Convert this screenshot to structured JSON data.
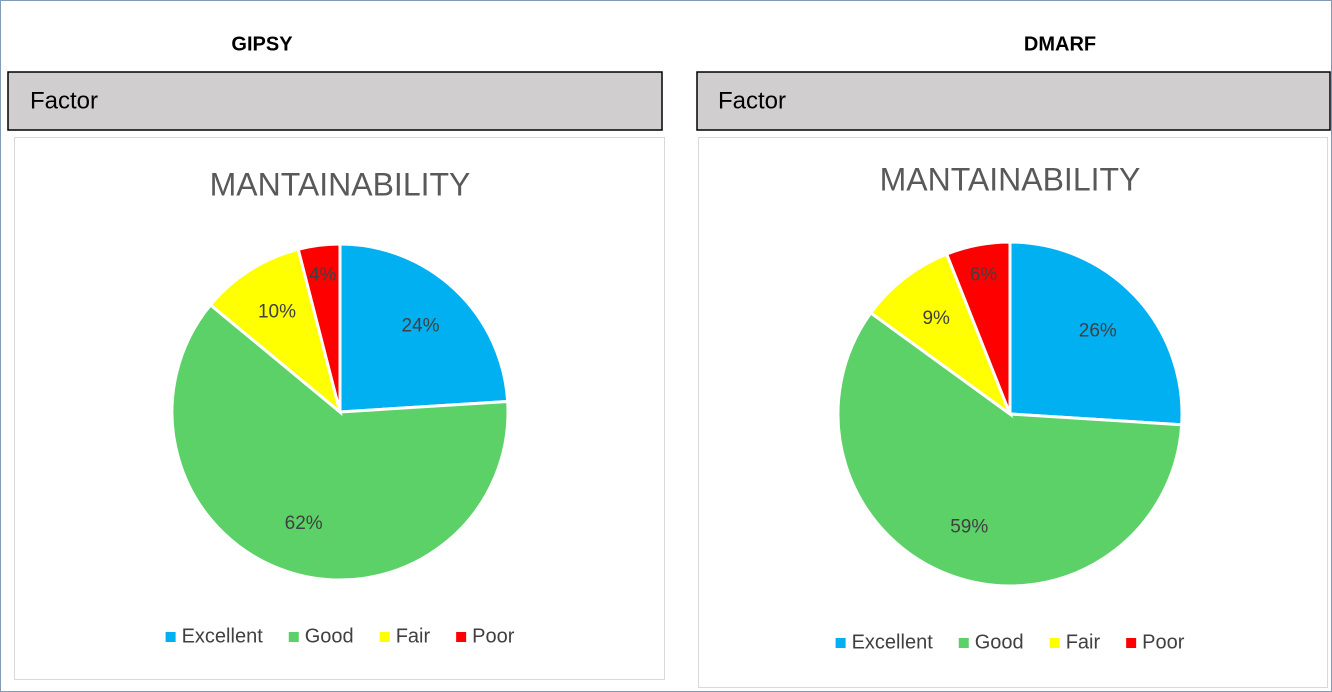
{
  "panels": [
    {
      "heading": "GIPSY",
      "label": "Factor"
    },
    {
      "heading": "DMARF",
      "label": "Factor"
    }
  ],
  "chart_data": [
    {
      "type": "pie",
      "title": "MANTAINABILITY",
      "categories": [
        "Excellent",
        "Good",
        "Fair",
        "Poor"
      ],
      "values": [
        24,
        62,
        10,
        4
      ],
      "value_labels": [
        "24%",
        "62%",
        "10%",
        "4%"
      ],
      "colors": [
        "#00b0f0",
        "#5cd168",
        "#ffff00",
        "#ff0000"
      ]
    },
    {
      "type": "pie",
      "title": "MANTAINABILITY",
      "categories": [
        "Excellent",
        "Good",
        "Fair",
        "Poor"
      ],
      "values": [
        26,
        59,
        9,
        6
      ],
      "value_labels": [
        "26%",
        "59%",
        "9%",
        "6%"
      ],
      "colors": [
        "#00b0f0",
        "#5cd168",
        "#ffff00",
        "#ff0000"
      ]
    }
  ]
}
